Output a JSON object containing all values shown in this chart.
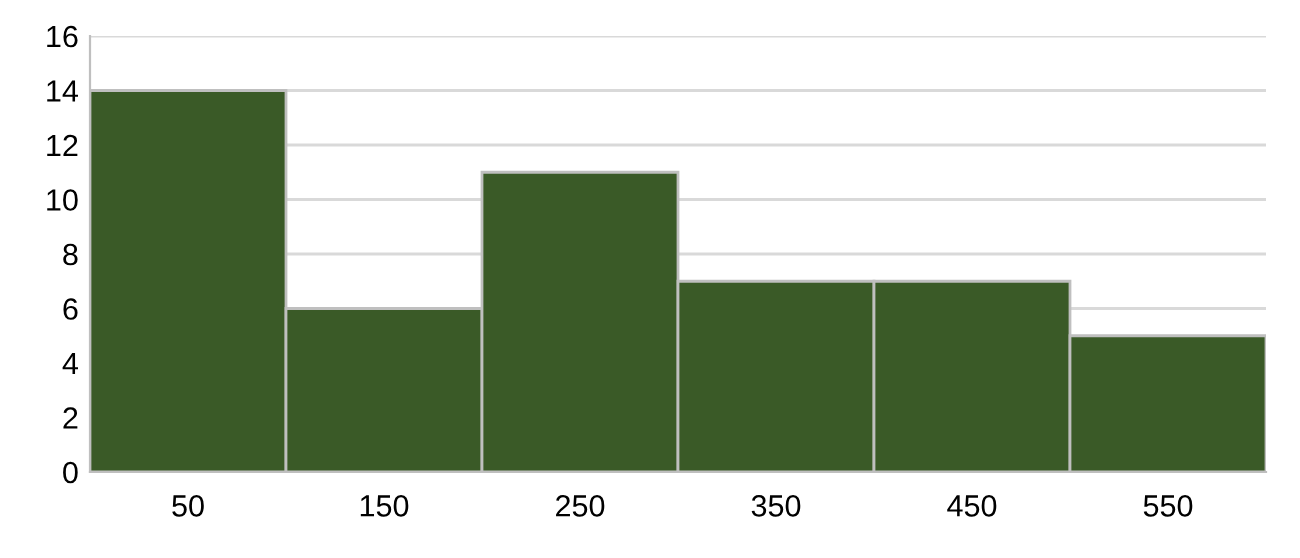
{
  "chart_data": {
    "type": "bar",
    "categories": [
      "50",
      "150",
      "250",
      "350",
      "450",
      "550"
    ],
    "values": [
      14,
      6,
      11,
      7,
      7,
      5
    ],
    "color": "#3a5a27",
    "ylim": [
      0,
      16
    ],
    "yticks": [
      0,
      2,
      4,
      6,
      8,
      10,
      12,
      14,
      16
    ],
    "grid": "y",
    "legend": false
  }
}
